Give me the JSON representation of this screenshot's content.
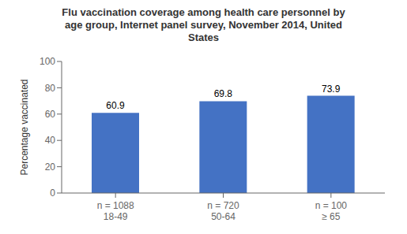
{
  "chart_data": {
    "type": "bar",
    "title": "Flu vaccination coverage among health care personnel by\nage group, Internet panel survey, November 2014, United\nStates",
    "categories": [
      "18-49",
      "50-64",
      "≥ 65"
    ],
    "annotations": [
      "n = 1088",
      "n = 720",
      "n = 100"
    ],
    "values": [
      60.9,
      69.8,
      73.9
    ],
    "color": "#4472c4",
    "ylabel": "Percentage vaccinated",
    "ylim": [
      0,
      100
    ],
    "yticks": [
      0,
      20,
      40,
      60,
      80,
      100
    ],
    "grid": false,
    "data_labels": true
  }
}
